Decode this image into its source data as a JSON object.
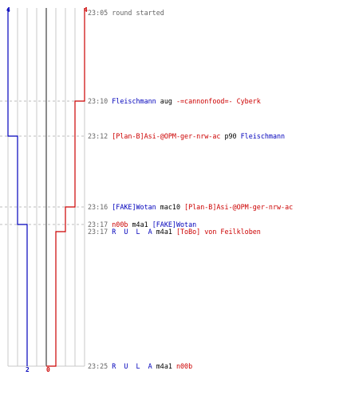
{
  "colors": {
    "blue": "#0000bb",
    "red": "#cc0000",
    "grid": "#c8c8c8",
    "dash": "#bdbdbd",
    "center": "#666666",
    "timestamp": "#666666"
  },
  "team_scores": {
    "blue": {
      "start": "4",
      "end": "2"
    },
    "red": {
      "start": "4",
      "end": "0"
    }
  },
  "events": [
    {
      "time": "23:05",
      "comment": "round started",
      "dashed": false,
      "parts": []
    },
    {
      "time": "23:10",
      "dashed": true,
      "parts": [
        {
          "text": "Fleischmann",
          "team": "b"
        },
        {
          "text": " aug ",
          "team": "k"
        },
        {
          "text": "-=cannonfood=- Cyberk",
          "team": "r"
        }
      ]
    },
    {
      "time": "23:12",
      "dashed": true,
      "parts": [
        {
          "text": "[Plan-B]Asi-@OPM-ger-nrw-ac",
          "team": "r"
        },
        {
          "text": " p90 ",
          "team": "k"
        },
        {
          "text": "Fleischmann",
          "team": "b"
        }
      ]
    },
    {
      "time": "23:16",
      "dashed": true,
      "parts": [
        {
          "text": "[FAKE]Wotan",
          "team": "b"
        },
        {
          "text": " mac10 ",
          "team": "k"
        },
        {
          "text": "[Plan-B]Asi-@OPM-ger-nrw-ac",
          "team": "r"
        }
      ]
    },
    {
      "time": "23:17",
      "dashed": true,
      "parts": [
        {
          "text": "n00b",
          "team": "r"
        },
        {
          "text": " m4a1 ",
          "team": "k"
        },
        {
          "text": "[FAKE]Wotan",
          "team": "b"
        }
      ]
    },
    {
      "time": "23:17",
      "dashed": false,
      "parts": [
        {
          "text": "R  U  L  A",
          "team": "b"
        },
        {
          "text": " m4a1 ",
          "team": "k"
        },
        {
          "text": "[ToBo]",
          "team": "r"
        },
        {
          "text": " von Feilkloben",
          "team": "r"
        }
      ]
    },
    {
      "time": "23:25",
      "dashed": false,
      "parts": [
        {
          "text": "R  U  L  A",
          "team": "b"
        },
        {
          "text": " m4a1 ",
          "team": "k"
        },
        {
          "text": "n00b",
          "team": "r"
        }
      ]
    }
  ]
}
